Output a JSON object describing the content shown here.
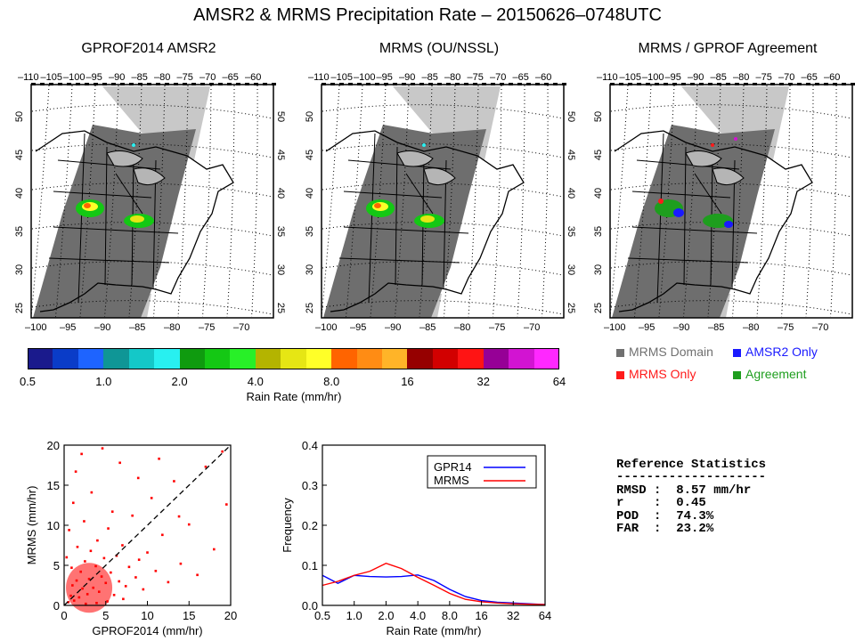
{
  "title": "AMSR2 & MRMS Precipitation Rate – 20150626–0748UTC",
  "panels": {
    "gprof": {
      "title": "GPROF2014 AMSR2"
    },
    "mrms": {
      "title": "MRMS (OU/NSSL)"
    },
    "agree": {
      "title": "MRMS / GPROF Agreement"
    }
  },
  "map_ticks": {
    "top_lon": [
      "–110",
      "–105",
      "–100",
      "–95",
      "–90",
      "–85",
      "–80",
      "–75",
      "–70",
      "–65",
      "–60"
    ],
    "bottom_lon": [
      "–100",
      "–95",
      "–90",
      "–85",
      "–80",
      "–75",
      "–70"
    ],
    "agree_bottom_lon": [
      "–100",
      "–95",
      "–90",
      "–85",
      "–80",
      "–75",
      "–70"
    ],
    "lat": [
      "50",
      "45",
      "40",
      "35",
      "30",
      "25"
    ]
  },
  "colorbar": {
    "label": "Rain Rate (mm/hr)",
    "tick_labels": [
      "0.5",
      "1.0",
      "2.0",
      "4.0",
      "8.0",
      "16",
      "32",
      "64"
    ],
    "colors": [
      "#1a1a8c",
      "#0a3cc8",
      "#1e64ff",
      "#0f9696",
      "#14c8c8",
      "#28f0f0",
      "#0f9b0f",
      "#14c814",
      "#28f028",
      "#b4b400",
      "#e6e614",
      "#ffff28",
      "#ff6400",
      "#ff8c14",
      "#ffb428",
      "#960000",
      "#d20000",
      "#ff1414",
      "#960096",
      "#d214d2",
      "#ff28ff"
    ]
  },
  "agreement_legend": {
    "domain": {
      "label": "MRMS Domain",
      "color": "#707070"
    },
    "amsr2_only": {
      "label": "AMSR2 Only",
      "color": "#1a1aff"
    },
    "mrms_only": {
      "label": "MRMS Only",
      "color": "#ff1a1a"
    },
    "agreement": {
      "label": "Agreement",
      "color": "#1e9e1e"
    }
  },
  "stats": {
    "heading": "Reference Statistics",
    "rule": "--------------------",
    "rows": [
      "RMSD :  8.57 mm/hr",
      "r    :  0.45",
      "POD  :  74.3%",
      "FAR  :  23.2%"
    ]
  },
  "chart_data": [
    {
      "type": "scatter",
      "xlabel": "GPROF2014 (mm/hr)",
      "ylabel": "MRMS (mm/hr)",
      "xlim": [
        0,
        20
      ],
      "ylim": [
        0,
        20
      ],
      "xticks": [
        "0",
        "5",
        "10",
        "15",
        "20"
      ],
      "yticks": [
        "0",
        "5",
        "10",
        "15",
        "20"
      ],
      "reference_line": "y = x (dashed)",
      "color": "#ff0000",
      "points": [
        [
          0.5,
          0.4
        ],
        [
          0.8,
          1.2
        ],
        [
          1.0,
          2.5
        ],
        [
          1.2,
          0.6
        ],
        [
          1.5,
          3.1
        ],
        [
          1.8,
          1.0
        ],
        [
          2.0,
          4.2
        ],
        [
          2.2,
          2.1
        ],
        [
          2.5,
          5.5
        ],
        [
          2.8,
          1.4
        ],
        [
          3.0,
          3.3
        ],
        [
          3.2,
          6.8
        ],
        [
          3.5,
          2.2
        ],
        [
          3.8,
          4.9
        ],
        [
          4.0,
          8.1
        ],
        [
          4.2,
          1.7
        ],
        [
          4.5,
          3.6
        ],
        [
          4.8,
          5.9
        ],
        [
          5.0,
          2.8
        ],
        [
          5.3,
          9.6
        ],
        [
          5.6,
          4.1
        ],
        [
          6.0,
          1.3
        ],
        [
          6.3,
          6.2
        ],
        [
          6.6,
          3.0
        ],
        [
          7.0,
          7.5
        ],
        [
          7.4,
          2.4
        ],
        [
          7.8,
          4.8
        ],
        [
          8.2,
          11.2
        ],
        [
          8.6,
          3.5
        ],
        [
          9.0,
          5.7
        ],
        [
          9.5,
          2.0
        ],
        [
          10.0,
          6.6
        ],
        [
          10.5,
          13.4
        ],
        [
          11.0,
          4.3
        ],
        [
          11.8,
          8.8
        ],
        [
          12.5,
          2.9
        ],
        [
          13.2,
          15.5
        ],
        [
          14.0,
          5.2
        ],
        [
          15.0,
          10.1
        ],
        [
          16.0,
          3.8
        ],
        [
          17.0,
          17.3
        ],
        [
          18.0,
          7.0
        ],
        [
          19.0,
          19.2
        ],
        [
          19.5,
          12.6
        ],
        [
          0.3,
          6.0
        ],
        [
          0.6,
          9.4
        ],
        [
          1.1,
          12.8
        ],
        [
          1.4,
          16.7
        ],
        [
          2.1,
          18.9
        ],
        [
          3.3,
          14.1
        ],
        [
          4.6,
          19.6
        ],
        [
          5.8,
          11.7
        ],
        [
          6.7,
          17.8
        ],
        [
          8.9,
          15.9
        ],
        [
          11.4,
          18.3
        ],
        [
          13.8,
          11.1
        ],
        [
          2.6,
          0.2
        ],
        [
          3.9,
          0.3
        ],
        [
          5.2,
          0.5
        ],
        [
          7.1,
          0.8
        ],
        [
          0.9,
          4.7
        ],
        [
          1.6,
          7.3
        ],
        [
          2.4,
          10.5
        ]
      ]
    },
    {
      "type": "line",
      "xlabel": "Rain Rate (mm/hr)",
      "ylabel": "Frequency",
      "x_scale": "log2",
      "x": [
        0.5,
        0.7,
        1.0,
        1.4,
        2.0,
        2.8,
        4.0,
        5.7,
        8.0,
        11.3,
        16,
        22.6,
        32,
        45.3,
        64
      ],
      "xticks": [
        "0.5",
        "1.0",
        "2.0",
        "4.0",
        "8.0",
        "16",
        "32",
        "64"
      ],
      "ylim": [
        0.0,
        0.4
      ],
      "yticks": [
        "0.0",
        "0.1",
        "0.2",
        "0.3",
        "0.4"
      ],
      "legend_position": "top-right",
      "series": [
        {
          "name": "GPR14",
          "color": "#0000ff",
          "values": [
            0.075,
            0.055,
            0.075,
            0.072,
            0.071,
            0.072,
            0.076,
            0.062,
            0.04,
            0.022,
            0.012,
            0.008,
            0.006,
            0.004,
            0.002
          ]
        },
        {
          "name": "MRMS",
          "color": "#ff0000",
          "values": [
            0.05,
            0.06,
            0.075,
            0.085,
            0.105,
            0.092,
            0.07,
            0.05,
            0.03,
            0.015,
            0.009,
            0.006,
            0.004,
            0.003,
            0.002
          ]
        }
      ]
    }
  ]
}
